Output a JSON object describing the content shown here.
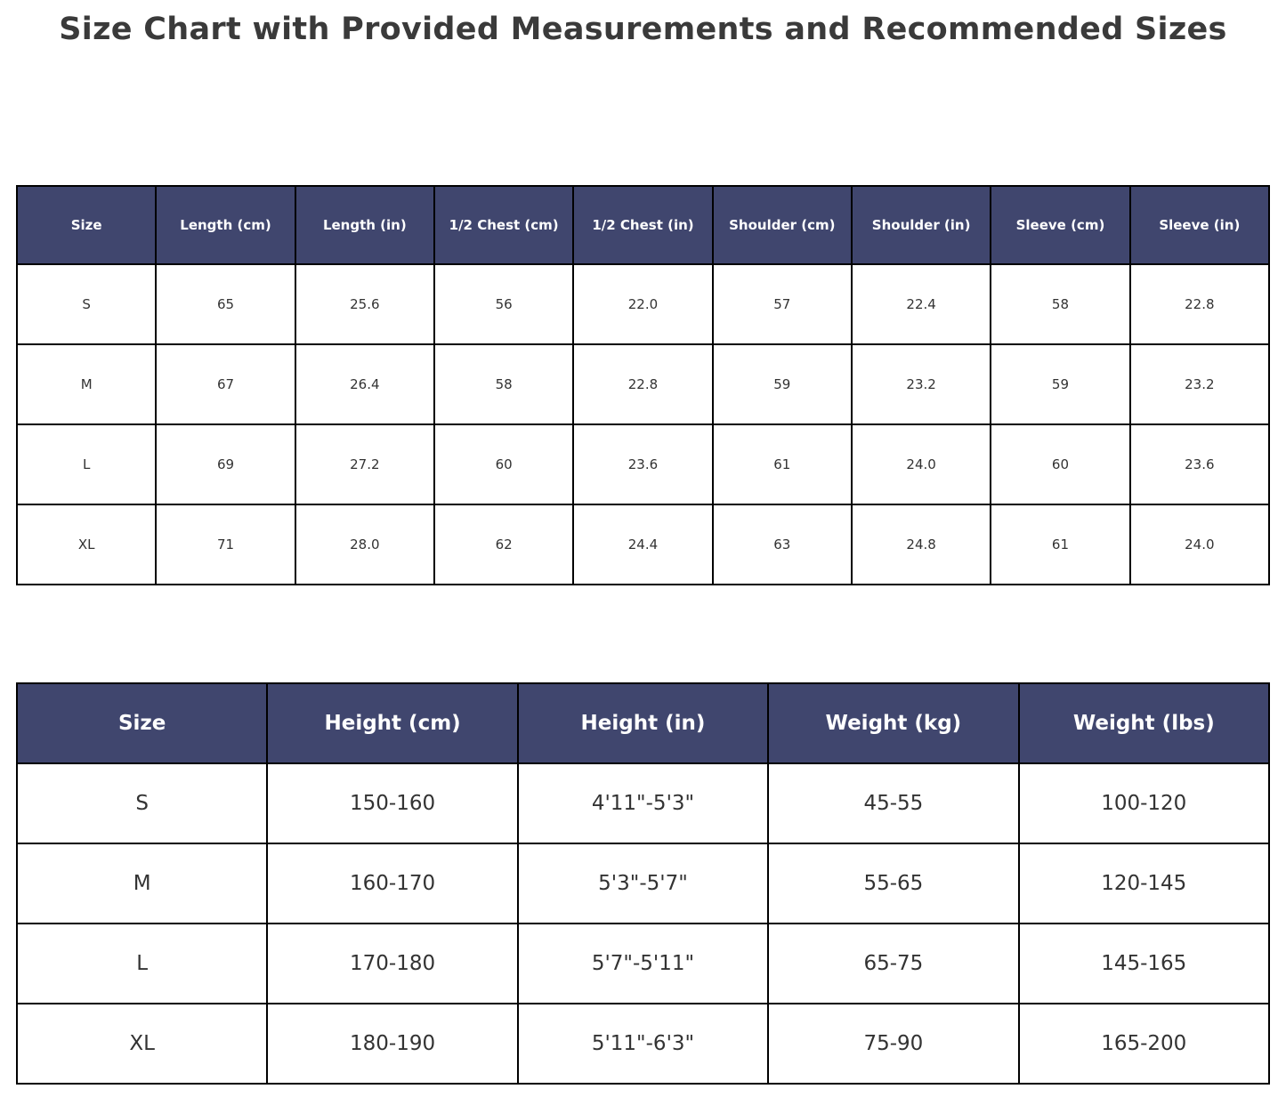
{
  "page": {
    "title": "Size Chart with Provided Measurements and Recommended Sizes"
  },
  "colors": {
    "header_bg": "#40466e",
    "header_text": "#ffffff",
    "cell_text": "#333333",
    "grid_border": "#000000",
    "title_text": "#3a3a3a",
    "background": "#ffffff"
  },
  "measurements_table": {
    "headers": [
      "Size",
      "Length (cm)",
      "Length (in)",
      "1/2 Chest (cm)",
      "1/2 Chest (in)",
      "Shoulder (cm)",
      "Shoulder (in)",
      "Sleeve (cm)",
      "Sleeve (in)"
    ],
    "rows": [
      [
        "S",
        "65",
        "25.6",
        "56",
        "22.0",
        "57",
        "22.4",
        "58",
        "22.8"
      ],
      [
        "M",
        "67",
        "26.4",
        "58",
        "22.8",
        "59",
        "23.2",
        "59",
        "23.2"
      ],
      [
        "L",
        "69",
        "27.2",
        "60",
        "23.6",
        "61",
        "24.0",
        "60",
        "23.6"
      ],
      [
        "XL",
        "71",
        "28.0",
        "62",
        "24.4",
        "63",
        "24.8",
        "61",
        "24.0"
      ]
    ]
  },
  "recommended_table": {
    "headers": [
      "Size",
      "Height (cm)",
      "Height (in)",
      "Weight (kg)",
      "Weight (lbs)"
    ],
    "rows": [
      [
        "S",
        "150-160",
        "4'11\"-5'3\"",
        "45-55",
        "100-120"
      ],
      [
        "M",
        "160-170",
        "5'3\"-5'7\"",
        "55-65",
        "120-145"
      ],
      [
        "L",
        "170-180",
        "5'7\"-5'11\"",
        "65-75",
        "145-165"
      ],
      [
        "XL",
        "180-190",
        "5'11\"-6'3\"",
        "75-90",
        "165-200"
      ]
    ]
  },
  "chart_data": [
    {
      "type": "table",
      "title": "Size Chart with Provided Measurements and Recommended Sizes",
      "columns": [
        "Size",
        "Length (cm)",
        "Length (in)",
        "1/2 Chest (cm)",
        "1/2 Chest (in)",
        "Shoulder (cm)",
        "Shoulder (in)",
        "Sleeve (cm)",
        "Sleeve (in)"
      ],
      "rows": [
        [
          "S",
          65,
          25.6,
          56,
          22.0,
          57,
          22.4,
          58,
          22.8
        ],
        [
          "M",
          67,
          26.4,
          58,
          22.8,
          59,
          23.2,
          59,
          23.2
        ],
        [
          "L",
          69,
          27.2,
          60,
          23.6,
          61,
          24.0,
          60,
          23.6
        ],
        [
          "XL",
          71,
          28.0,
          62,
          24.4,
          63,
          24.8,
          61,
          24.0
        ]
      ],
      "header_bg": "#40466e",
      "layout": "grid with black borders, centered values"
    },
    {
      "type": "table",
      "columns": [
        "Size",
        "Height (cm)",
        "Height (in)",
        "Weight (kg)",
        "Weight (lbs)"
      ],
      "rows": [
        [
          "S",
          "150-160",
          "4'11\"-5'3\"",
          "45-55",
          "100-120"
        ],
        [
          "M",
          "160-170",
          "5'3\"-5'7\"",
          "55-65",
          "120-145"
        ],
        [
          "L",
          "170-180",
          "5'7\"-5'11\"",
          "65-75",
          "145-165"
        ],
        [
          "XL",
          "180-190",
          "5'11\"-6'3\"",
          "75-90",
          "165-200"
        ]
      ],
      "header_bg": "#40466e",
      "layout": "grid with black borders, centered values"
    }
  ]
}
